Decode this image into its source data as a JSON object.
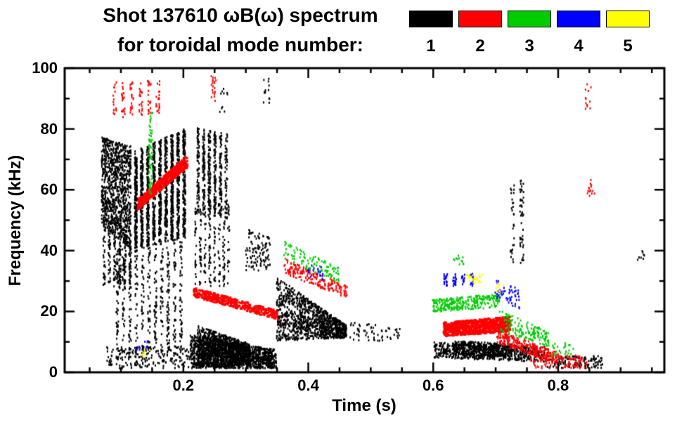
{
  "title": {
    "line1": "Shot 137610 ωB(ω) spectrum",
    "line2": "for toroidal mode number:"
  },
  "chart_data": {
    "type": "scatter",
    "title": "Shot 137610 ωB(ω) spectrum",
    "subtitle": "for toroidal mode number: 1 2 3 4 5",
    "xlabel": "Time (s)",
    "ylabel": "Frequency (kHz)",
    "xlim": [
      0.01,
      0.97
    ],
    "ylim": [
      0,
      100
    ],
    "xticks": [
      0.2,
      0.4,
      0.6,
      0.8
    ],
    "yticks": [
      0,
      20,
      40,
      60,
      80,
      100
    ],
    "x_minor_step": 0.05,
    "y_minor_step": 10,
    "grid": false,
    "legend_position": "top-right",
    "modes": [
      {
        "mode": 1,
        "label": "1",
        "color": "#000000"
      },
      {
        "mode": 2,
        "label": "2",
        "color": "#ff0000"
      },
      {
        "mode": 3,
        "label": "3",
        "color": "#00cc00"
      },
      {
        "mode": 4,
        "label": "4",
        "color": "#0000ff"
      },
      {
        "mode": 5,
        "label": "5",
        "color": "#ffff00"
      }
    ],
    "note": "Dense spectrogram point clouds approximated as clusters: t=[t0,t1] s, fs=[fmin,fmax] kHz at t0, fe=[fmin,fmax] kHz at t1, n=point count, cols=vertical striation count.",
    "clusters": [
      {
        "mode": 1,
        "t": [
          0.068,
          0.115
        ],
        "fs": [
          48,
          77
        ],
        "fe": [
          40,
          74
        ],
        "n": 1000
      },
      {
        "mode": 1,
        "t": [
          0.068,
          0.118
        ],
        "fs": [
          28,
          52
        ],
        "fe": [
          26,
          46
        ],
        "n": 260,
        "cols": 6
      },
      {
        "mode": 1,
        "t": [
          0.118,
          0.205
        ],
        "fs": [
          40,
          72
        ],
        "fe": [
          44,
          80
        ],
        "n": 1800,
        "cols": 9
      },
      {
        "mode": 1,
        "t": [
          0.088,
          0.2
        ],
        "fs": [
          4,
          40
        ],
        "fe": [
          6,
          44
        ],
        "n": 520,
        "cols": 11
      },
      {
        "mode": 1,
        "t": [
          0.075,
          0.21
        ],
        "fs": [
          1,
          8
        ],
        "fe": [
          1,
          8
        ],
        "n": 190
      },
      {
        "mode": 1,
        "t": [
          0.218,
          0.272
        ],
        "fs": [
          52,
          80
        ],
        "fe": [
          50,
          78
        ],
        "n": 520,
        "cols": 6
      },
      {
        "mode": 1,
        "t": [
          0.215,
          0.275
        ],
        "fs": [
          28,
          56
        ],
        "fe": [
          28,
          55
        ],
        "n": 220,
        "cols": 8
      },
      {
        "mode": 1,
        "t": [
          0.21,
          0.348
        ],
        "fs": [
          1,
          12
        ],
        "fe": [
          1,
          7
        ],
        "n": 1300
      },
      {
        "mode": 1,
        "t": [
          0.222,
          0.305
        ],
        "fs": [
          1,
          15
        ],
        "fe": [
          2,
          9
        ],
        "n": 900
      },
      {
        "mode": 1,
        "t": [
          0.298,
          0.338
        ],
        "fs": [
          33,
          47
        ],
        "fe": [
          33,
          44
        ],
        "n": 110
      },
      {
        "mode": 1,
        "t": [
          0.348,
          0.46
        ],
        "fs": [
          10,
          31
        ],
        "fe": [
          11,
          15
        ],
        "n": 1150
      },
      {
        "mode": 1,
        "t": [
          0.46,
          0.55
        ],
        "fs": [
          10,
          17
        ],
        "fe": [
          10,
          14
        ],
        "n": 60
      },
      {
        "mode": 1,
        "t": [
          0.6,
          0.78
        ],
        "fs": [
          4.5,
          9.5
        ],
        "fe": [
          3,
          8
        ],
        "n": 620
      },
      {
        "mode": 1,
        "t": [
          0.63,
          0.725
        ],
        "fs": [
          5,
          10
        ],
        "fe": [
          5,
          9
        ],
        "n": 380
      },
      {
        "mode": 1,
        "t": [
          0.78,
          0.87
        ],
        "fs": [
          1,
          5
        ],
        "fe": [
          1,
          5
        ],
        "n": 130
      },
      {
        "mode": 1,
        "t": [
          0.718,
          0.748
        ],
        "fs": [
          35,
          66
        ],
        "fe": [
          35,
          62
        ],
        "n": 80,
        "cols": 2
      },
      {
        "mode": 1,
        "t": [
          0.325,
          0.34
        ],
        "fs": [
          88,
          97
        ],
        "fe": [
          88,
          97
        ],
        "n": 14,
        "cols": 2
      },
      {
        "mode": 1,
        "t": [
          0.255,
          0.27
        ],
        "fs": [
          84,
          93
        ],
        "fe": [
          84,
          93
        ],
        "n": 10
      },
      {
        "mode": 1,
        "t": [
          0.925,
          0.94
        ],
        "fs": [
          36,
          40
        ],
        "fe": [
          36,
          40
        ],
        "n": 8
      },
      {
        "mode": 2,
        "t": [
          0.125,
          0.205
        ],
        "fs": [
          53,
          56.5
        ],
        "fe": [
          67,
          71
        ],
        "n": 480,
        "w": 3
      },
      {
        "mode": 2,
        "t": [
          0.082,
          0.165
        ],
        "fs": [
          83,
          95
        ],
        "fe": [
          85,
          96
        ],
        "n": 120,
        "cols": 6
      },
      {
        "mode": 2,
        "t": [
          0.242,
          0.252
        ],
        "fs": [
          88,
          97
        ],
        "fe": [
          88,
          97
        ],
        "n": 20
      },
      {
        "mode": 2,
        "t": [
          0.215,
          0.35
        ],
        "fs": [
          24.5,
          27.5
        ],
        "fe": [
          17,
          20
        ],
        "n": 420,
        "w": 3
      },
      {
        "mode": 2,
        "t": [
          0.36,
          0.462
        ],
        "fs": [
          32,
          37
        ],
        "fe": [
          24,
          28
        ],
        "n": 200
      },
      {
        "mode": 2,
        "t": [
          0.615,
          0.722
        ],
        "fs": [
          11.5,
          16
        ],
        "fe": [
          13,
          18
        ],
        "n": 850,
        "w": 3
      },
      {
        "mode": 2,
        "t": [
          0.7,
          0.8
        ],
        "fs": [
          9,
          14
        ],
        "fe": [
          2,
          6
        ],
        "n": 260
      },
      {
        "mode": 2,
        "t": [
          0.755,
          0.845
        ],
        "fs": [
          1,
          6
        ],
        "fe": [
          1,
          5
        ],
        "n": 110
      },
      {
        "mode": 2,
        "t": [
          0.845,
          0.858
        ],
        "fs": [
          57,
          64
        ],
        "fe": [
          57,
          64
        ],
        "n": 14
      },
      {
        "mode": 2,
        "t": [
          0.842,
          0.852
        ],
        "fs": [
          86,
          95
        ],
        "fe": [
          86,
          95
        ],
        "n": 12
      },
      {
        "mode": 3,
        "t": [
          0.143,
          0.15
        ],
        "fs": [
          58,
          85
        ],
        "fe": [
          58,
          85
        ],
        "n": 60
      },
      {
        "mode": 3,
        "t": [
          0.358,
          0.448
        ],
        "fs": [
          37,
          43
        ],
        "fe": [
          29,
          34
        ],
        "n": 110
      },
      {
        "mode": 3,
        "t": [
          0.598,
          0.705
        ],
        "fs": [
          19.5,
          23.5
        ],
        "fe": [
          21,
          25.5
        ],
        "n": 270
      },
      {
        "mode": 3,
        "t": [
          0.705,
          0.785
        ],
        "fs": [
          13,
          20
        ],
        "fe": [
          8,
          13
        ],
        "n": 140
      },
      {
        "mode": 3,
        "t": [
          0.628,
          0.648
        ],
        "fs": [
          35,
          38
        ],
        "fe": [
          35,
          38
        ],
        "n": 12
      },
      {
        "mode": 3,
        "t": [
          0.788,
          0.825
        ],
        "fs": [
          5,
          10
        ],
        "fe": [
          5,
          9
        ],
        "n": 28
      },
      {
        "mode": 4,
        "t": [
          0.612,
          0.668
        ],
        "fs": [
          28,
          32
        ],
        "fe": [
          28,
          32
        ],
        "n": 70,
        "cols": 4
      },
      {
        "mode": 4,
        "t": [
          0.698,
          0.738
        ],
        "fs": [
          24,
          30
        ],
        "fe": [
          20,
          27
        ],
        "n": 55
      },
      {
        "mode": 4,
        "t": [
          0.398,
          0.425
        ],
        "fs": [
          31,
          35
        ],
        "fe": [
          30,
          34
        ],
        "n": 16
      },
      {
        "mode": 4,
        "t": [
          0.124,
          0.142
        ],
        "fs": [
          7,
          10
        ],
        "fe": [
          7,
          10
        ],
        "n": 9
      },
      {
        "mode": 5,
        "t": [
          0.652,
          0.678
        ],
        "fs": [
          29,
          32
        ],
        "fe": [
          29,
          32
        ],
        "n": 22
      },
      {
        "mode": 5,
        "t": [
          0.7,
          0.712
        ],
        "fs": [
          26,
          29
        ],
        "fe": [
          26,
          29
        ],
        "n": 8
      },
      {
        "mode": 5,
        "t": [
          0.128,
          0.145
        ],
        "fs": [
          5,
          7
        ],
        "fe": [
          5,
          7
        ],
        "n": 8
      }
    ]
  }
}
